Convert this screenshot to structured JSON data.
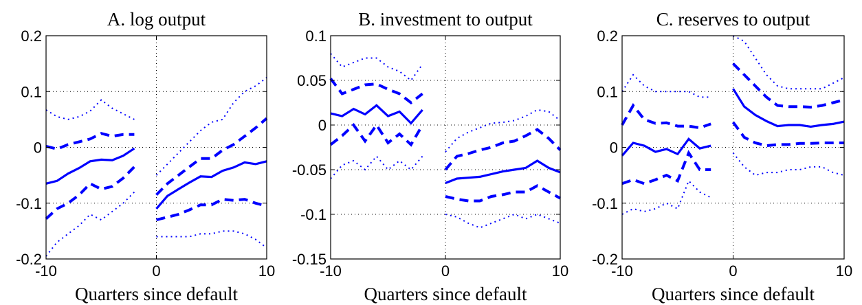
{
  "chart_data": [
    {
      "type": "line",
      "title": "A. log output",
      "x_label": "Quarters since default",
      "x": [
        -10,
        -9,
        -8,
        -7,
        -6,
        -5,
        -4,
        -3,
        -2,
        -1,
        0,
        1,
        2,
        3,
        4,
        5,
        6,
        7,
        8,
        9,
        10
      ],
      "xlim": [
        -10,
        10
      ],
      "xticks": [
        -10,
        0,
        10
      ],
      "ylim": [
        -0.2,
        0.2
      ],
      "yticks": [
        -0.2,
        -0.1,
        0,
        0.1,
        0.2
      ],
      "grid": true,
      "series": [
        {
          "color": "#0000ff",
          "style": "solid",
          "values": [
            -0.065,
            -0.06,
            -0.047,
            -0.037,
            -0.025,
            -0.022,
            -0.023,
            -0.015,
            -0.002,
            null,
            -0.11,
            -0.087,
            -0.075,
            -0.063,
            -0.052,
            -0.053,
            -0.042,
            -0.036,
            -0.027,
            -0.03,
            -0.025
          ]
        },
        {
          "color": "#0000ff",
          "style": "dashed",
          "values": [
            0.002,
            -0.003,
            0.005,
            0.01,
            0.015,
            0.025,
            0.02,
            0.023,
            0.023,
            null,
            -0.085,
            -0.065,
            -0.05,
            -0.035,
            -0.02,
            -0.02,
            -0.005,
            0.005,
            0.02,
            0.035,
            0.052
          ]
        },
        {
          "color": "#0000ff",
          "style": "dashed",
          "values": [
            -0.128,
            -0.11,
            -0.1,
            -0.085,
            -0.065,
            -0.075,
            -0.07,
            -0.055,
            -0.035,
            null,
            -0.13,
            -0.125,
            -0.12,
            -0.112,
            -0.103,
            -0.103,
            -0.093,
            -0.095,
            -0.093,
            -0.1,
            -0.105
          ]
        },
        {
          "color": "#0000ff",
          "style": "dotted",
          "values": [
            0.067,
            0.055,
            0.05,
            0.055,
            0.065,
            0.085,
            0.07,
            0.06,
            0.05,
            null,
            -0.05,
            -0.03,
            -0.01,
            0.01,
            0.03,
            0.045,
            0.05,
            0.08,
            0.1,
            0.11,
            0.125
          ]
        },
        {
          "color": "#0000ff",
          "style": "dotted",
          "values": [
            -0.195,
            -0.17,
            -0.155,
            -0.14,
            -0.12,
            -0.13,
            -0.115,
            -0.1,
            -0.08,
            null,
            -0.16,
            -0.16,
            -0.16,
            -0.16,
            -0.155,
            -0.155,
            -0.15,
            -0.15,
            -0.155,
            -0.165,
            -0.18
          ]
        }
      ]
    },
    {
      "type": "line",
      "title": "B. investment to output",
      "x_label": "Quarters since default",
      "x": [
        -10,
        -9,
        -8,
        -7,
        -6,
        -5,
        -4,
        -3,
        -2,
        -1,
        0,
        1,
        2,
        3,
        4,
        5,
        6,
        7,
        8,
        9,
        10
      ],
      "xlim": [
        -10,
        10
      ],
      "xticks": [
        -10,
        0,
        10
      ],
      "ylim": [
        -0.15,
        0.1
      ],
      "yticks": [
        -0.15,
        -0.1,
        -0.05,
        0,
        0.05,
        0.1
      ],
      "grid": true,
      "series": [
        {
          "color": "#0000ff",
          "style": "solid",
          "values": [
            0.013,
            0.01,
            0.018,
            0.012,
            0.022,
            0.01,
            0.015,
            0.002,
            0.017,
            null,
            -0.065,
            -0.06,
            -0.059,
            -0.058,
            -0.055,
            -0.052,
            -0.05,
            -0.048,
            -0.04,
            -0.048,
            -0.053
          ]
        },
        {
          "color": "#0000ff",
          "style": "dashed",
          "values": [
            0.052,
            0.035,
            0.04,
            0.045,
            0.046,
            0.04,
            0.035,
            0.025,
            0.035,
            null,
            -0.05,
            -0.035,
            -0.032,
            -0.028,
            -0.025,
            -0.02,
            -0.018,
            -0.012,
            -0.005,
            -0.015,
            -0.028
          ]
        },
        {
          "color": "#0000ff",
          "style": "dashed",
          "values": [
            -0.022,
            -0.012,
            0,
            -0.018,
            0,
            -0.02,
            -0.01,
            -0.022,
            0,
            null,
            -0.08,
            -0.083,
            -0.085,
            -0.085,
            -0.08,
            -0.078,
            -0.075,
            -0.075,
            -0.068,
            -0.075,
            -0.082
          ]
        },
        {
          "color": "#0000ff",
          "style": "dotted",
          "values": [
            0.08,
            0.065,
            0.07,
            0.075,
            0.075,
            0.065,
            0.06,
            0.05,
            0.068,
            null,
            -0.03,
            -0.015,
            -0.008,
            -0.003,
            0.002,
            0.003,
            0.005,
            0.01,
            0.017,
            0.015,
            0.005
          ]
        },
        {
          "color": "#0000ff",
          "style": "dotted",
          "values": [
            -0.06,
            -0.045,
            -0.04,
            -0.05,
            -0.035,
            -0.05,
            -0.04,
            -0.05,
            -0.035,
            null,
            -0.1,
            -0.103,
            -0.11,
            -0.115,
            -0.11,
            -0.105,
            -0.1,
            -0.105,
            -0.1,
            -0.105,
            -0.11
          ]
        }
      ]
    },
    {
      "type": "line",
      "title": "C. reserves to output",
      "x_label": "Quarters since default",
      "x": [
        -10,
        -9,
        -8,
        -7,
        -6,
        -5,
        -4,
        -3,
        -2,
        -1,
        0,
        1,
        2,
        3,
        4,
        5,
        6,
        7,
        8,
        9,
        10
      ],
      "xlim": [
        -10,
        10
      ],
      "xticks": [
        -10,
        0,
        10
      ],
      "ylim": [
        -0.2,
        0.2
      ],
      "yticks": [
        -0.2,
        -0.1,
        0,
        0.1,
        0.2
      ],
      "grid": true,
      "series": [
        {
          "color": "#0000ff",
          "style": "solid",
          "values": [
            -0.015,
            0.008,
            0.003,
            -0.008,
            -0.003,
            -0.012,
            0.015,
            -0.002,
            0.003,
            null,
            0.105,
            0.073,
            0.058,
            0.047,
            0.038,
            0.04,
            0.04,
            0.037,
            0.04,
            0.042,
            0.046
          ]
        },
        {
          "color": "#0000ff",
          "style": "dashed",
          "values": [
            0.04,
            0.075,
            0.05,
            0.043,
            0.044,
            0.038,
            0.038,
            0.035,
            0.042,
            null,
            0.15,
            0.13,
            0.11,
            0.09,
            0.075,
            0.073,
            0.073,
            0.072,
            0.075,
            0.08,
            0.085
          ]
        },
        {
          "color": "#0000ff",
          "style": "dashed",
          "values": [
            -0.065,
            -0.058,
            -0.065,
            -0.058,
            -0.05,
            -0.06,
            -0.01,
            -0.04,
            -0.04,
            null,
            0.045,
            0.018,
            0.008,
            0.003,
            0.005,
            0.005,
            0.007,
            0.007,
            0.008,
            0.008,
            0.008
          ]
        },
        {
          "color": "#0000ff",
          "style": "dotted",
          "values": [
            0.1,
            0.13,
            0.11,
            0.1,
            0.1,
            0.1,
            0.1,
            0.09,
            0.09,
            null,
            0.2,
            0.19,
            0.16,
            0.13,
            0.11,
            0.105,
            0.105,
            0.105,
            0.105,
            0.115,
            0.125
          ]
        },
        {
          "color": "#0000ff",
          "style": "dotted",
          "values": [
            -0.12,
            -0.11,
            -0.115,
            -0.11,
            -0.1,
            -0.11,
            -0.06,
            -0.08,
            -0.09,
            null,
            -0.01,
            -0.035,
            -0.05,
            -0.045,
            -0.045,
            -0.04,
            -0.04,
            -0.035,
            -0.035,
            -0.045,
            -0.05
          ]
        }
      ]
    }
  ]
}
